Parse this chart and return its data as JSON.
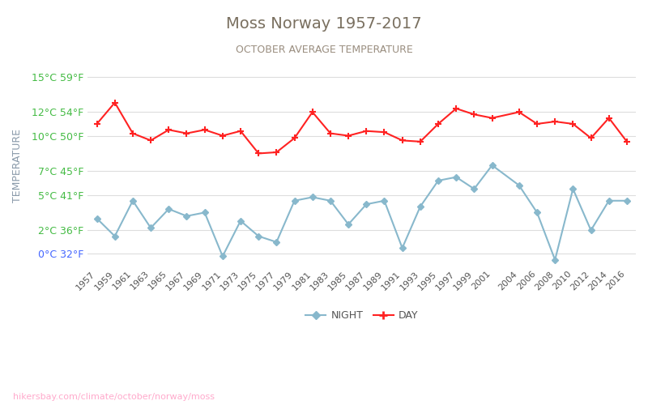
{
  "title": "Moss Norway 1957-2017",
  "subtitle": "OCTOBER AVERAGE TEMPERATURE",
  "ylabel": "TEMPERATURE",
  "watermark": "hikersbay.com/climate/october/norway/moss",
  "title_color": "#7a7060",
  "subtitle_color": "#9a8e80",
  "ylabel_color": "#8a9aaa",
  "background_color": "#ffffff",
  "grid_color": "#dddddd",
  "years": [
    1957,
    1959,
    1961,
    1963,
    1965,
    1967,
    1969,
    1971,
    1973,
    1975,
    1977,
    1979,
    1981,
    1983,
    1985,
    1987,
    1989,
    1991,
    1993,
    1995,
    1997,
    1999,
    2001,
    2004,
    2006,
    2008,
    2010,
    2012,
    2014,
    2016
  ],
  "day_temps": [
    11.0,
    12.8,
    10.2,
    9.6,
    10.5,
    10.2,
    10.5,
    10.0,
    10.4,
    8.5,
    8.6,
    9.8,
    12.0,
    10.2,
    10.0,
    10.4,
    10.3,
    9.6,
    9.5,
    11.0,
    12.3,
    11.8,
    11.5,
    12.0,
    11.0,
    11.2,
    11.0,
    9.8,
    11.5,
    9.5
  ],
  "night_temps": [
    3.0,
    1.5,
    4.5,
    2.2,
    3.8,
    3.2,
    3.5,
    -0.2,
    2.8,
    1.5,
    1.0,
    4.5,
    4.8,
    4.5,
    2.5,
    4.2,
    4.5,
    0.5,
    4.0,
    6.2,
    6.5,
    5.5,
    7.5,
    5.8,
    3.5,
    -0.5,
    5.5,
    2.0,
    4.5,
    4.5
  ],
  "day_color": "#ff2222",
  "night_color": "#88b8cc",
  "ylim_min": -1,
  "ylim_max": 16,
  "yticks_celsius": [
    0,
    2,
    5,
    7,
    10,
    12,
    15
  ],
  "yticks_fahrenheit": [
    32,
    36,
    41,
    45,
    50,
    54,
    59
  ],
  "ytick_color_green": "#44bb44",
  "ytick_color_blue": "#4466ff",
  "legend_night": "NIGHT",
  "legend_day": "DAY"
}
